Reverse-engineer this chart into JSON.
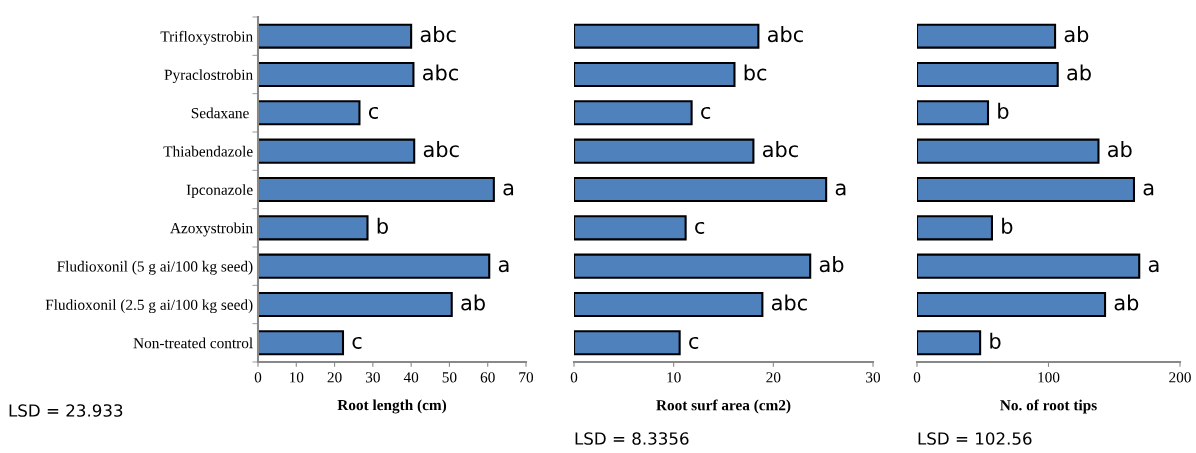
{
  "chart_data": [
    {
      "type": "bar",
      "orientation": "horizontal",
      "xlabel": "Root length (cm)",
      "categories": [
        "Trifloxystrobin",
        "Pyraclostrobin",
        "Sedaxane ",
        "Thiabendazole",
        "Ipconazole",
        "Azoxystrobin",
        "Fludioxonil (5 g ai/100 kg seed)",
        "Fludioxonil (2.5 g ai/100 kg seed)",
        "Non-treated control"
      ],
      "values": [
        40.0,
        40.6,
        26.5,
        40.8,
        61.6,
        28.6,
        60.4,
        50.6,
        22.2
      ],
      "value_labels": [
        "abc",
        "abc",
        "c",
        "abc",
        "a",
        "b",
        "a",
        "ab",
        "c"
      ],
      "color": "#4f81bd",
      "xlim": [
        0,
        70
      ],
      "xticks": [
        0,
        10,
        20,
        30,
        40,
        50,
        60,
        70
      ],
      "annotations": [
        "LSD = 23.933"
      ]
    },
    {
      "type": "bar",
      "orientation": "horizontal",
      "xlabel": "Root surf area (cm2)",
      "tick_labels": "x",
      "categories": [
        null,
        null,
        null,
        null,
        null,
        null,
        null,
        null,
        null
      ],
      "values": [
        18.5,
        16.1,
        11.8,
        18.0,
        25.3,
        11.2,
        23.7,
        18.9,
        10.6
      ],
      "value_labels": [
        "abc",
        "bc",
        "c",
        "abc",
        "a",
        "c",
        "ab",
        "abc",
        "c"
      ],
      "color": "#4f81bd",
      "xlim": [
        0,
        30
      ],
      "xticks": [
        0,
        10,
        20,
        30
      ],
      "annotations": [
        "LSD = 8.3356"
      ]
    },
    {
      "type": "bar",
      "orientation": "horizontal",
      "xlabel": "No. of root tips",
      "tick_labels": "x",
      "categories": [
        null,
        null,
        null,
        null,
        null,
        null,
        null,
        null,
        null
      ],
      "values": [
        105,
        107,
        54,
        138,
        165,
        57,
        169,
        143,
        48
      ],
      "value_labels": [
        "ab",
        "ab",
        "b",
        "ab",
        "a",
        "b",
        "a",
        "ab",
        "b"
      ],
      "color": "#4f81bd",
      "xlim": [
        0,
        200
      ],
      "xticks": [
        0,
        100,
        200
      ],
      "annotations": [
        "LSD = 102.56"
      ]
    }
  ]
}
